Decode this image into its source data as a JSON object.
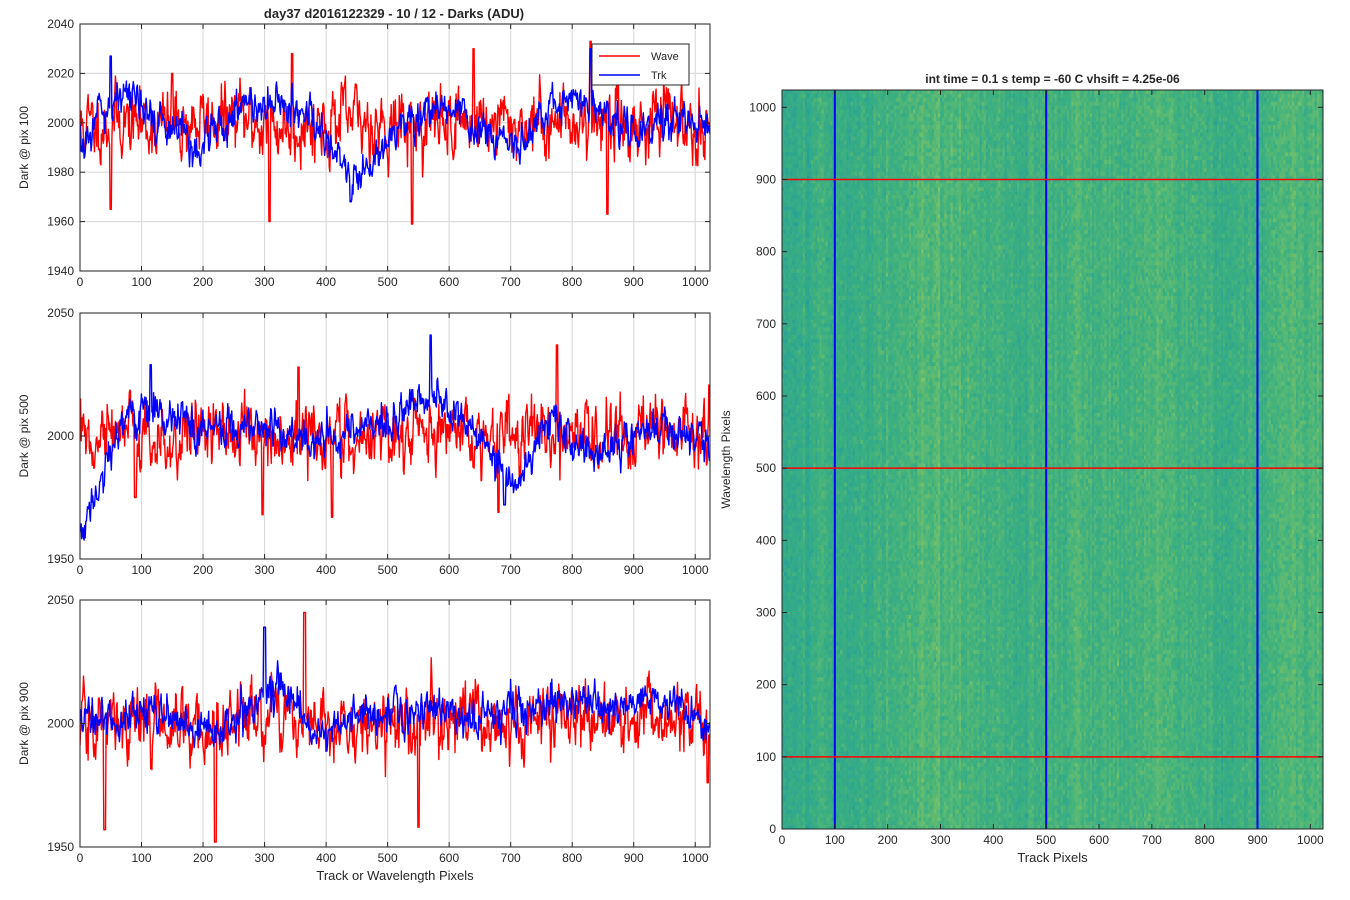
{
  "figure": {
    "title": "day37 d2016122329 - 10 / 12 - Darks (ADU)",
    "shared_xlabel": "Track or Wavelength Pixels"
  },
  "colors": {
    "wave": "#ff0000",
    "trk": "#0000ff",
    "heat_low": "#1e9aa0",
    "heat_mid": "#3cb07f",
    "heat_high": "#8cc860",
    "grid": "#dcdcdc",
    "axis": "#262626"
  },
  "chart_data": [
    {
      "type": "line",
      "ylabel": "Dark @ pix 100",
      "xlim": [
        0,
        1024
      ],
      "ylim": [
        1940,
        2040
      ],
      "xticks": [
        0,
        100,
        200,
        300,
        400,
        500,
        600,
        700,
        800,
        900,
        1000
      ],
      "yticks": [
        1940,
        1960,
        1980,
        2000,
        2020,
        2040
      ],
      "grid": true,
      "legend": {
        "placement": "top-right",
        "entries": [
          "Wave",
          "Trk"
        ]
      },
      "series": [
        {
          "name": "Wave",
          "color": "#ff0000",
          "points_per_sample": 16,
          "x": [
            0,
            64,
            128,
            192,
            256,
            320,
            384,
            448,
            512,
            576,
            640,
            704,
            768,
            832,
            896,
            960,
            1024
          ],
          "y": [
            1998,
            2001,
            1999,
            2000,
            2002,
            1998,
            2000,
            2001,
            1999,
            2000,
            2001,
            1999,
            2000,
            2002,
            1999,
            2001,
            2000
          ],
          "noise_sd": 7,
          "spikes": [
            [
              50,
              1965
            ],
            [
              150,
              2020
            ],
            [
              308,
              1960
            ],
            [
              345,
              2028
            ],
            [
              540,
              1959
            ],
            [
              640,
              2030
            ],
            [
              857,
              1963
            ],
            [
              830,
              2033
            ]
          ]
        },
        {
          "name": "Trk",
          "color": "#0000ff",
          "points_per_sample": 16,
          "x": [
            0,
            64,
            128,
            192,
            256,
            320,
            384,
            448,
            512,
            576,
            640,
            704,
            768,
            832,
            896,
            960,
            1024
          ],
          "y": [
            1992,
            2012,
            2002,
            1990,
            2005,
            2010,
            1998,
            1975,
            1998,
            2008,
            2000,
            1990,
            2006,
            2008,
            1996,
            2002,
            2000
          ],
          "noise_sd": 4,
          "spikes": [
            [
              50,
              2027
            ],
            [
              440,
              1968
            ],
            [
              830,
              2030
            ]
          ]
        }
      ]
    },
    {
      "type": "line",
      "ylabel": "Dark @ pix 500",
      "xlim": [
        0,
        1024
      ],
      "ylim": [
        1950,
        2050
      ],
      "xticks": [
        0,
        100,
        200,
        300,
        400,
        500,
        600,
        700,
        800,
        900,
        1000
      ],
      "yticks": [
        1950,
        2000,
        2050
      ],
      "grid": true,
      "series": [
        {
          "name": "Wave",
          "color": "#ff0000",
          "points_per_sample": 16,
          "x": [
            0,
            64,
            128,
            192,
            256,
            320,
            384,
            448,
            512,
            576,
            640,
            704,
            768,
            832,
            896,
            960,
            1024
          ],
          "y": [
            2000,
            2002,
            1998,
            1999,
            2001,
            1998,
            2002,
            2000,
            1999,
            2001,
            2000,
            2002,
            2001,
            1999,
            2001,
            2002,
            2000
          ],
          "noise_sd": 7,
          "spikes": [
            [
              90,
              1975
            ],
            [
              297,
              1968
            ],
            [
              355,
              2028
            ],
            [
              410,
              1967
            ],
            [
              680,
              1969
            ],
            [
              775,
              2037
            ]
          ]
        },
        {
          "name": "Trk",
          "color": "#0000ff",
          "points_per_sample": 16,
          "x": [
            0,
            64,
            128,
            192,
            256,
            320,
            384,
            448,
            512,
            576,
            640,
            704,
            768,
            832,
            896,
            960,
            1024
          ],
          "y": [
            1958,
            2004,
            2012,
            2002,
            2006,
            2000,
            1998,
            2004,
            2006,
            2016,
            2002,
            1980,
            2008,
            1992,
            2002,
            2004,
            1998
          ],
          "noise_sd": 4,
          "spikes": [
            [
              115,
              2029
            ],
            [
              570,
              2041
            ],
            [
              690,
              1972
            ]
          ]
        }
      ]
    },
    {
      "type": "line",
      "ylabel": "Dark @ pix 900",
      "xlabel": "Track or Wavelength Pixels",
      "xlim": [
        0,
        1024
      ],
      "ylim": [
        1950,
        2050
      ],
      "xticks": [
        0,
        100,
        200,
        300,
        400,
        500,
        600,
        700,
        800,
        900,
        1000
      ],
      "yticks": [
        1950,
        2000,
        2050
      ],
      "grid": true,
      "series": [
        {
          "name": "Wave",
          "color": "#ff0000",
          "points_per_sample": 16,
          "x": [
            0,
            64,
            128,
            192,
            256,
            320,
            384,
            448,
            512,
            576,
            640,
            704,
            768,
            832,
            896,
            960,
            1024
          ],
          "y": [
            1998,
            2000,
            2001,
            1999,
            2002,
            2004,
            1998,
            2000,
            2001,
            1999,
            2001,
            2000,
            2002,
            2001,
            2000,
            2003,
            1998
          ],
          "noise_sd": 7,
          "spikes": [
            [
              40,
              1957
            ],
            [
              220,
              1952
            ],
            [
              365,
              2045
            ],
            [
              550,
              1958
            ],
            [
              1020,
              1976
            ]
          ]
        },
        {
          "name": "Trk",
          "color": "#0000ff",
          "points_per_sample": 16,
          "x": [
            0,
            64,
            128,
            192,
            256,
            320,
            384,
            448,
            512,
            576,
            640,
            704,
            768,
            832,
            896,
            960,
            1024
          ],
          "y": [
            2004,
            2002,
            2006,
            1996,
            2002,
            2016,
            1996,
            2004,
            2004,
            2006,
            2002,
            2006,
            2008,
            2006,
            2008,
            2010,
            1996
          ],
          "noise_sd": 4,
          "spikes": [
            [
              300,
              2039
            ]
          ]
        }
      ]
    },
    {
      "type": "heatmap",
      "title": "int time = 0.1 s   temp = -60 C   vhsift = 4.25e-06",
      "xlabel": "Track Pixels",
      "ylabel": "Wavelength Pixels",
      "xlim": [
        0,
        1024
      ],
      "ylim": [
        0,
        1024
      ],
      "xticks": [
        0,
        100,
        200,
        300,
        400,
        500,
        600,
        700,
        800,
        900,
        1000
      ],
      "yticks": [
        0,
        100,
        200,
        300,
        400,
        500,
        600,
        700,
        800,
        900,
        1000
      ],
      "column_profile": {
        "x": [
          0,
          64,
          128,
          192,
          256,
          320,
          384,
          448,
          512,
          576,
          640,
          704,
          768,
          832,
          896,
          960,
          1024
        ],
        "level": [
          0.35,
          0.45,
          0.42,
          0.5,
          0.62,
          0.58,
          0.55,
          0.48,
          0.52,
          0.56,
          0.5,
          0.6,
          0.55,
          0.45,
          0.5,
          0.62,
          0.55
        ]
      },
      "vertical_markers": {
        "x": [
          100,
          500,
          900
        ],
        "color": "#0000ff"
      },
      "horizontal_markers": {
        "y": [
          100,
          500,
          900
        ],
        "color": "#ff0000"
      }
    }
  ]
}
